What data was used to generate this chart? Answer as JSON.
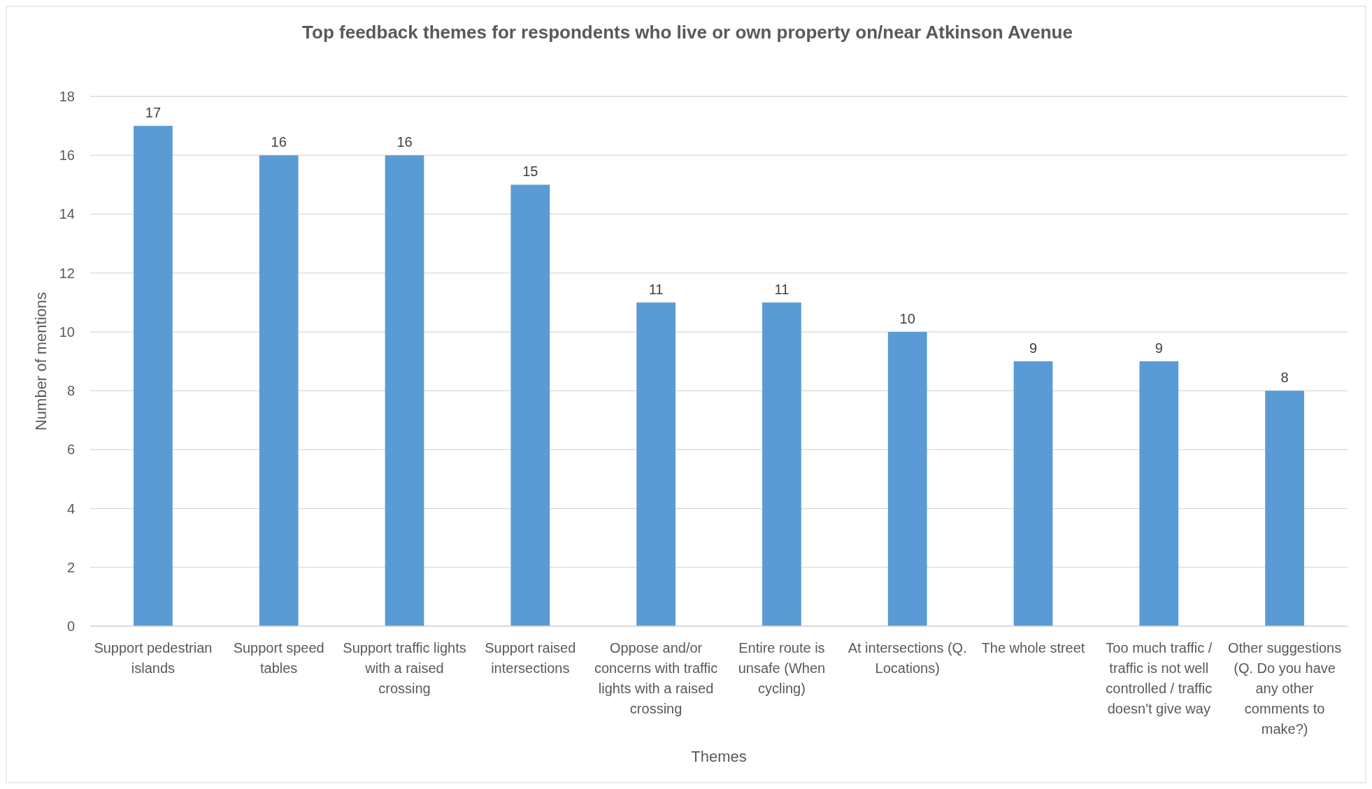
{
  "chart_data": {
    "type": "bar",
    "title": "Top feedback themes for respondents who live or own property on/near Atkinson Avenue",
    "xlabel": "Themes",
    "ylabel": "Number of mentions",
    "categories": [
      "Support pedestrian islands",
      "Support speed tables",
      "Support traffic lights with a raised crossing",
      "Support raised intersections",
      "Oppose and/or concerns with traffic lights with a raised crossing",
      "Entire route is unsafe (When cycling)",
      "At intersections (Q. Locations)",
      "The whole street",
      "Too much traffic / traffic is not well controlled / traffic doesn't give way",
      "Other suggestions (Q. Do you have any other comments to make?)"
    ],
    "values": [
      17,
      16,
      16,
      15,
      11,
      11,
      10,
      9,
      9,
      8
    ],
    "color": "#5b9bd5",
    "ylim": [
      0,
      18
    ],
    "yticks": [
      0,
      2,
      4,
      6,
      8,
      10,
      12,
      14,
      16,
      18
    ],
    "grid": "y",
    "data_labels": true
  }
}
